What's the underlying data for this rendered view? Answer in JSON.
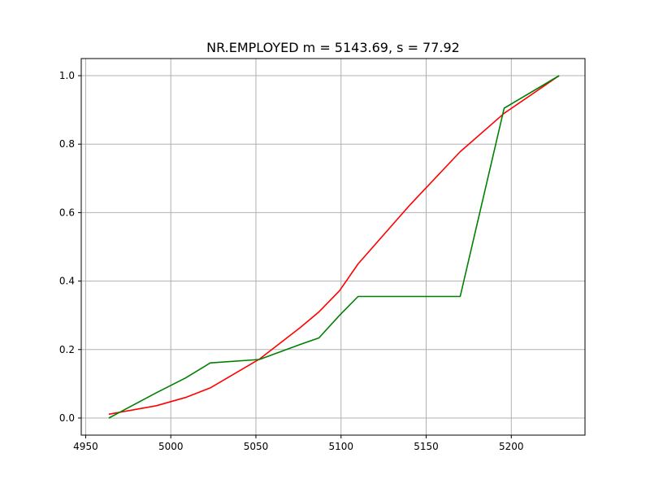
{
  "chart_data": {
    "type": "line",
    "title": "NR.EMPLOYED  m = 5143.69,  s = 77.92",
    "xlabel": "",
    "ylabel": "",
    "xlim": [
      4947.4,
      5243.3
    ],
    "ylim": [
      -0.05,
      1.05
    ],
    "xticks": [
      4950,
      5000,
      5050,
      5100,
      5150,
      5200
    ],
    "yticks": [
      0.0,
      0.2,
      0.4,
      0.6,
      0.8,
      1.0
    ],
    "grid": true,
    "legend": "none",
    "series": [
      {
        "color": "#ff0000",
        "x": [
          4963.6,
          4991.6,
          5008.7,
          5023.2,
          5052.0,
          5076.0,
          5087.0,
          5099.1,
          5110.0,
          5140.0,
          5170.0,
          5195.8,
          5228.1
        ],
        "y": [
          0.011,
          0.036,
          0.06,
          0.088,
          0.172,
          0.264,
          0.31,
          0.372,
          0.45,
          0.62,
          0.778,
          0.89,
          1.0
        ]
      },
      {
        "color": "#008000",
        "x": [
          4963.6,
          4991.6,
          5008.7,
          5023.2,
          5052.0,
          5076.0,
          5087.0,
          5099.1,
          5110.0,
          5140.0,
          5170.0,
          5195.8,
          5228.1
        ],
        "y": [
          0.0,
          0.074,
          0.117,
          0.161,
          0.171,
          0.215,
          0.234,
          0.3,
          0.355,
          0.355,
          0.355,
          0.905,
          1.0
        ]
      }
    ]
  }
}
